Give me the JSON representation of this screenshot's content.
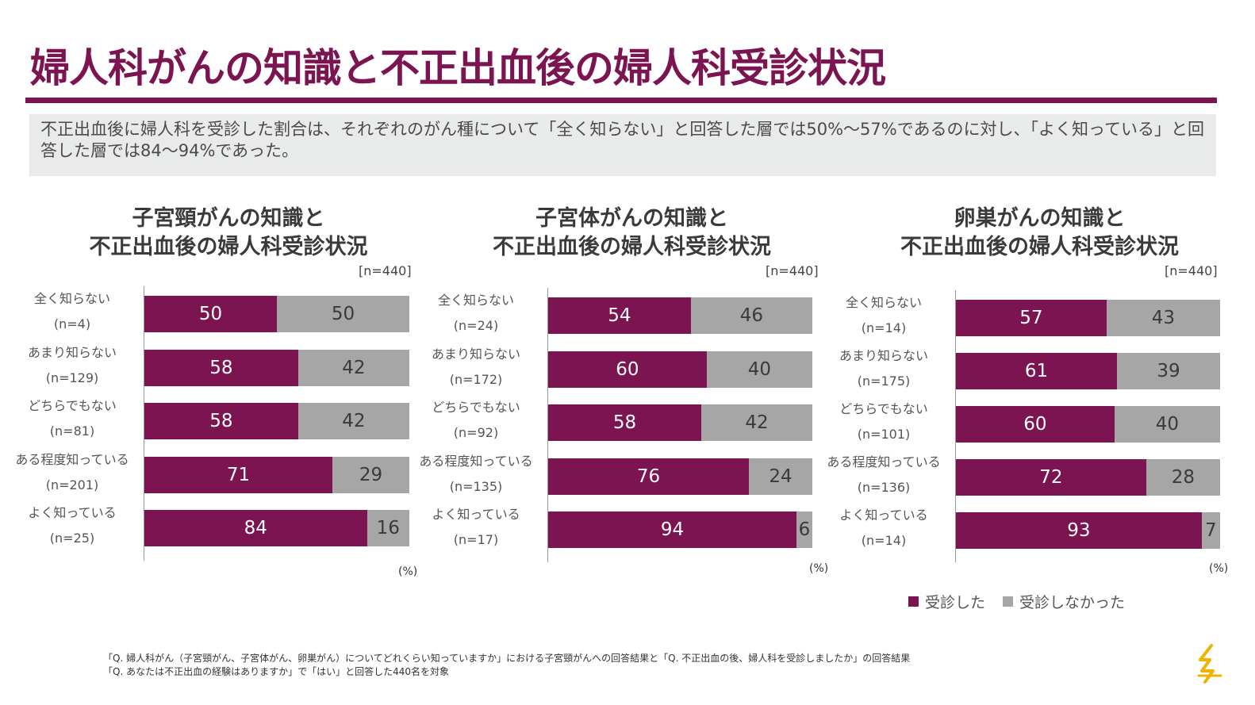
{
  "page": {
    "title": "婦人科がんの知識と不正出血後の婦人科受診状況",
    "summary": "不正出血後に婦人科を受診した割合は、それぞれのがん種について「全く知らない」と回答した層では50%～57%であるのに対し、「よく知っている」と回答した層では84～94%であった。"
  },
  "legend": {
    "yes_label": "受診した",
    "no_label": "受診しなかった",
    "yes_color": "#7b1450",
    "no_color": "#a6a6a6"
  },
  "unit_label": "(%)",
  "footnotes": [
    "「Q. 婦人科がん（子宮頸がん、子宮体がん、卵巣がん）についてどれくらい知っていますか」における子宮頸がんへの回答結果と「Q. 不正出血の後、婦人科を受診しましたか」の回答結果",
    "「Q. あなたは不正出血の経験はありますか」で「はい」と回答した440名を対象"
  ],
  "chart_data": [
    {
      "type": "bar",
      "orientation": "horizontal",
      "stacked": true,
      "title_line1": "子宮頸がんの知識と",
      "title_line2": "不正出血後の婦人科受診状況",
      "n_label": "[n=440]",
      "categories": [
        "全く知らない",
        "あまり知らない",
        "どちらでもない",
        "ある程度知っている",
        "よく知っている"
      ],
      "category_n": [
        "(n=4)",
        "(n=129)",
        "(n=81)",
        "(n=201)",
        "(n=25)"
      ],
      "series": [
        {
          "name": "受診した",
          "values": [
            50,
            58,
            58,
            71,
            84
          ]
        },
        {
          "name": "受診しなかった",
          "values": [
            50,
            42,
            42,
            29,
            16
          ]
        }
      ],
      "xlim": [
        0,
        100
      ]
    },
    {
      "type": "bar",
      "orientation": "horizontal",
      "stacked": true,
      "title_line1": "子宮体がんの知識と",
      "title_line2": "不正出血後の婦人科受診状況",
      "n_label": "[n=440]",
      "categories": [
        "全く知らない",
        "あまり知らない",
        "どちらでもない",
        "ある程度知っている",
        "よく知っている"
      ],
      "category_n": [
        "(n=24)",
        "(n=172)",
        "(n=92)",
        "(n=135)",
        "(n=17)"
      ],
      "series": [
        {
          "name": "受診した",
          "values": [
            54,
            60,
            58,
            76,
            94
          ]
        },
        {
          "name": "受診しなかった",
          "values": [
            46,
            40,
            42,
            24,
            6
          ]
        }
      ],
      "xlim": [
        0,
        100
      ]
    },
    {
      "type": "bar",
      "orientation": "horizontal",
      "stacked": true,
      "title_line1": "卵巣がんの知識と",
      "title_line2": "不正出血後の婦人科受診状況",
      "n_label": "[n=440]",
      "categories": [
        "全く知らない",
        "あまり知らない",
        "どちらでもない",
        "ある程度知っている",
        "よく知っている"
      ],
      "category_n": [
        "(n=14)",
        "(n=175)",
        "(n=101)",
        "(n=136)",
        "(n=14)"
      ],
      "series": [
        {
          "name": "受診した",
          "values": [
            57,
            61,
            60,
            72,
            93
          ]
        },
        {
          "name": "受診しなかった",
          "values": [
            43,
            39,
            40,
            28,
            7
          ]
        }
      ],
      "xlim": [
        0,
        100
      ]
    }
  ]
}
